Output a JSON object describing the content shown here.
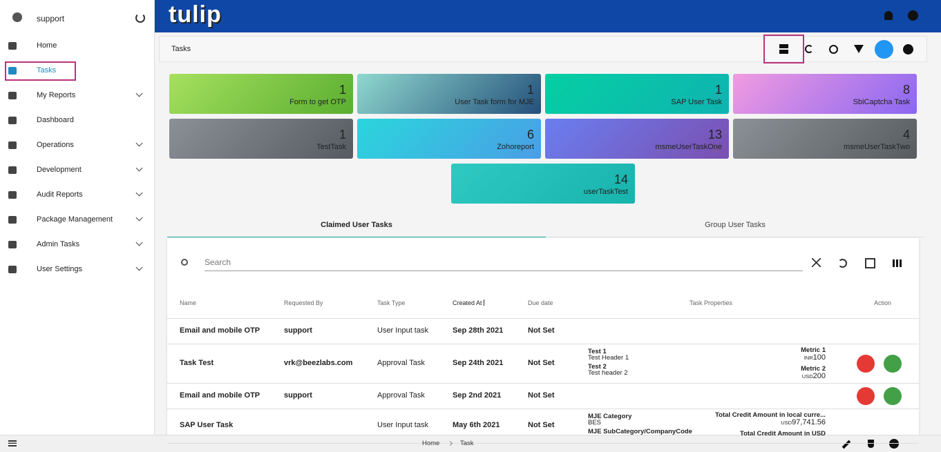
{
  "header": {
    "logo": "tulip"
  },
  "sidebar": {
    "user": "support",
    "items": [
      {
        "label": "Home",
        "expandable": false,
        "active": false
      },
      {
        "label": "Tasks",
        "expandable": false,
        "active": true
      },
      {
        "label": "My Reports",
        "expandable": true,
        "active": false
      },
      {
        "label": "Dashboard",
        "expandable": false,
        "active": false
      },
      {
        "label": "Operations",
        "expandable": true,
        "active": false
      },
      {
        "label": "Development",
        "expandable": true,
        "active": false
      },
      {
        "label": "Audit Reports",
        "expandable": true,
        "active": false
      },
      {
        "label": "Package Management",
        "expandable": true,
        "active": false
      },
      {
        "label": "Admin Tasks",
        "expandable": true,
        "active": false
      },
      {
        "label": "User Settings",
        "expandable": true,
        "active": false
      }
    ]
  },
  "toolbar": {
    "title": "Tasks"
  },
  "cards": [
    {
      "count": "1",
      "label": "Form to get OTP",
      "colors": [
        "#a6e05e",
        "#5aae31"
      ]
    },
    {
      "count": "1",
      "label": "User Task form for MJE",
      "colors": [
        "#8fd8cf",
        "#24507a"
      ]
    },
    {
      "count": "1",
      "label": "SAP User Task",
      "colors": [
        "#05cfa3",
        "#0fb3b0"
      ]
    },
    {
      "count": "8",
      "label": "SbiCaptcha Task",
      "colors": [
        "#f29be0",
        "#8a67f2"
      ]
    },
    {
      "count": "1",
      "label": "TestTask",
      "colors": [
        "#8b9097",
        "#565b61"
      ]
    },
    {
      "count": "6",
      "label": "Zohoreport",
      "colors": [
        "#2ad6dc",
        "#4a9ee6"
      ]
    },
    {
      "count": "13",
      "label": "msmeUserTaskOne",
      "colors": [
        "#6a7ef0",
        "#7b4fb0"
      ]
    },
    {
      "count": "4",
      "label": "msmeUserTaskTwo",
      "colors": [
        "#8c9196",
        "#575c60"
      ]
    },
    {
      "count": "14",
      "label": "userTaskTest",
      "colors": [
        "#2fc9c2",
        "#17b3ad"
      ]
    }
  ],
  "tabs": [
    "Claimed User Tasks",
    "Group User Tasks"
  ],
  "search": {
    "placeholder": "Search"
  },
  "table": {
    "columns": [
      "Name",
      "Requested By",
      "Task Type",
      "Created At",
      "Due date",
      "Task Properties",
      "Action"
    ],
    "rows": [
      {
        "cells": [
          "Email and mobile OTP",
          "support",
          "User Input task",
          "Sep 28th 2021",
          "Not Set"
        ],
        "properties": [],
        "metrics": [],
        "actions": false
      },
      {
        "cells": [
          "Task Test",
          "vrk@beezlabs.com",
          "Approval Task",
          "Sep 24th 2021",
          "Not Set"
        ],
        "properties": [
          {
            "name": "Test 1",
            "value": "Test Header 1"
          },
          {
            "name": "Test 2",
            "value": "Test header 2"
          }
        ],
        "metrics": [
          {
            "name": "Metric 1",
            "currency": "INR",
            "value": "100"
          },
          {
            "name": "Metric 2",
            "currency": "USD",
            "value": "200"
          }
        ],
        "actions": true
      },
      {
        "cells": [
          "Email and mobile OTP",
          "support",
          "Approval Task",
          "Sep 2nd 2021",
          "Not Set"
        ],
        "properties": [],
        "metrics": [],
        "actions": true
      },
      {
        "cells": [
          "SAP User Task",
          "",
          "User Input task",
          "May 6th 2021",
          "Not Set"
        ],
        "properties": [
          {
            "name": "MJE Category",
            "value": "BES"
          },
          {
            "name": "MJE SubCategory/CompanyCode"
          }
        ],
        "metrics": [
          {
            "name": "Total Credit Amount in local curre...",
            "currency": "USD",
            "value": "97,741.56"
          },
          {
            "name": "Total Credit Amount in USD"
          }
        ],
        "actions": false
      }
    ]
  },
  "footer": {
    "breadcrumbs": [
      "Home",
      "Task"
    ]
  }
}
